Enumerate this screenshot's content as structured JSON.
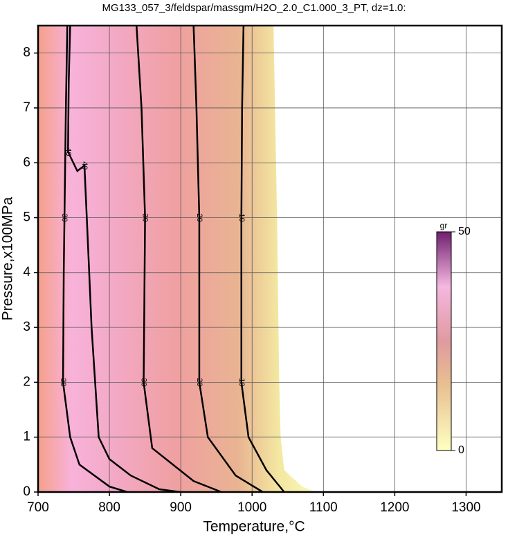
{
  "chart_data": {
    "type": "contour",
    "title": "MG133_057_3/feldspar/massgm/H2O_2.0_C1.000_3_PT, dz=1.0:",
    "x_label": "Temperature,°C",
    "y_label": "Pressure,x100MPa",
    "xlim": [
      700,
      1350
    ],
    "ylim": [
      0,
      8.5
    ],
    "xticks": [
      700,
      800,
      900,
      1000,
      1100,
      1200,
      1300
    ],
    "yticks": [
      0,
      1,
      2,
      3,
      4,
      5,
      6,
      7,
      8
    ],
    "grid": true,
    "field_extent": {
      "x": [
        1030,
        1035,
        1038,
        1040,
        1045,
        1070,
        1090
      ],
      "y": [
        8.5,
        5,
        2,
        1,
        0.4,
        0.1,
        0
      ]
    },
    "contours": [
      {
        "level": 30,
        "x": [
          741,
          739,
          737,
          736,
          735,
          745,
          758,
          800,
          825
        ],
        "y": [
          8.5,
          7,
          5,
          4,
          2,
          1,
          0.5,
          0.1,
          0
        ]
      },
      {
        "level": 40,
        "x": [
          745,
          743,
          742,
          755,
          765,
          770,
          775,
          780,
          785,
          800,
          830,
          870,
          900
        ],
        "y": [
          8.5,
          7.5,
          6.2,
          5.85,
          5.95,
          4.5,
          3,
          2,
          1,
          0.6,
          0.3,
          0.05,
          0
        ]
      },
      {
        "level": 30,
        "x": [
          838,
          845,
          850,
          849,
          848,
          860,
          918,
          957
        ],
        "y": [
          8.5,
          7,
          5,
          3.5,
          2,
          0.8,
          0.2,
          0
        ]
      },
      {
        "level": 20,
        "x": [
          918,
          922,
          926,
          926,
          926,
          938,
          977,
          1015
        ],
        "y": [
          8.5,
          7,
          5,
          3.5,
          2,
          1,
          0.3,
          0
        ]
      },
      {
        "level": 10,
        "x": [
          988,
          986,
          985,
          985,
          985,
          995,
          1020,
          1045
        ],
        "y": [
          8.5,
          7,
          5,
          3.5,
          2,
          1,
          0.4,
          0
        ]
      }
    ],
    "colorbar": {
      "label": "gr",
      "lim": [
        0,
        50
      ],
      "ticks": [
        0,
        50
      ]
    }
  }
}
